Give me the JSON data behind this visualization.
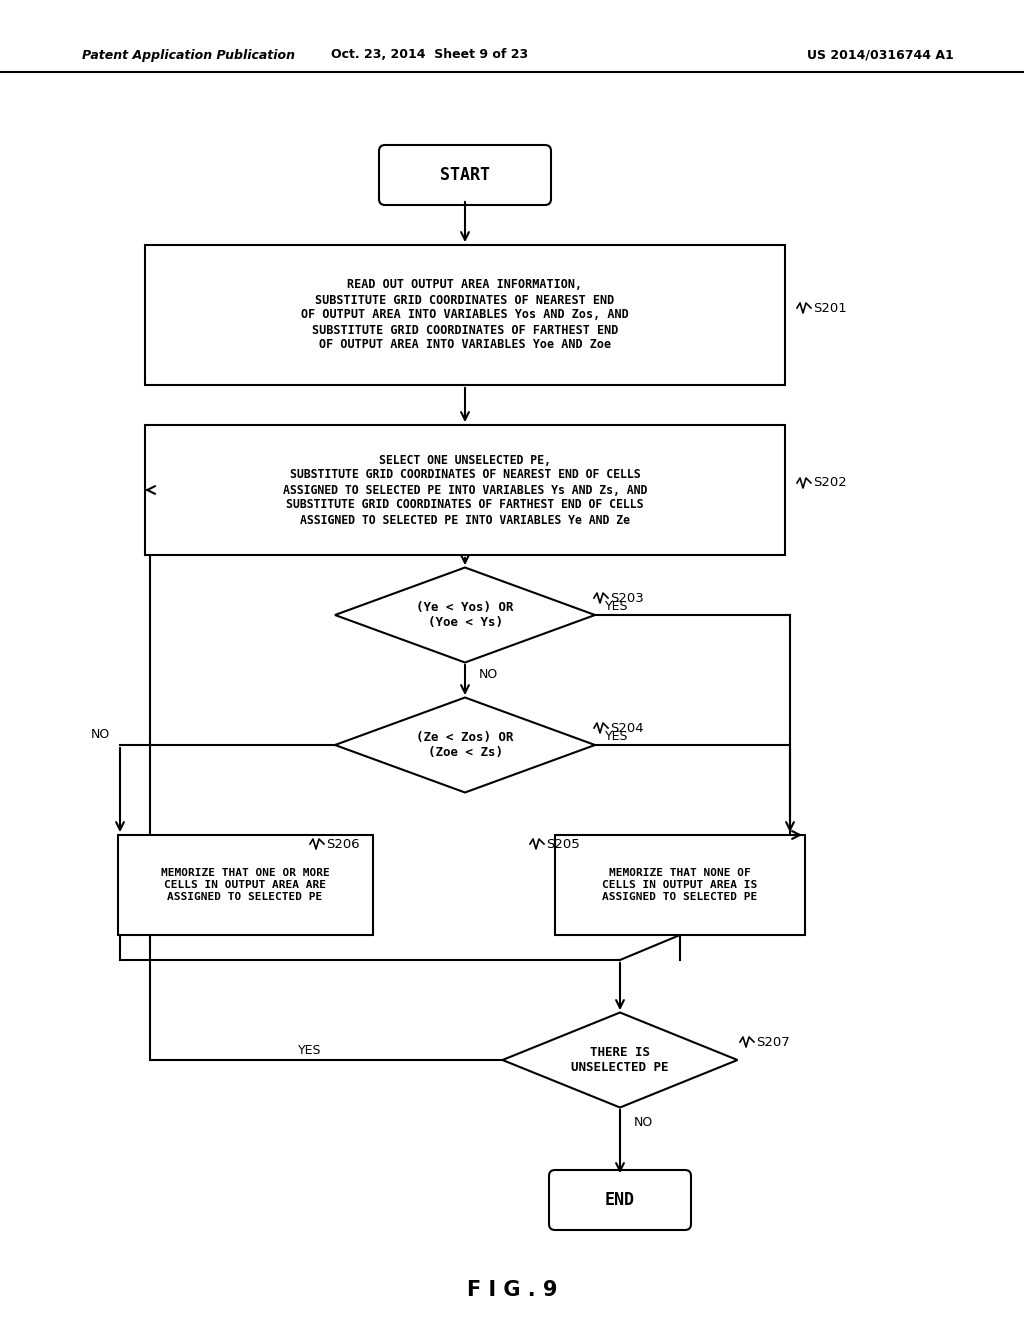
{
  "background": "#ffffff",
  "header_left": "Patent Application Publication",
  "header_mid": "Oct. 23, 2014  Sheet 9 of 23",
  "header_right": "US 2014/0316744 A1",
  "fig_label": "F I G . 9",
  "start_text": "START",
  "end_text": "END",
  "s201_text": "READ OUT OUTPUT AREA INFORMATION,\nSUBSTITUTE GRID COORDINATES OF NEAREST END\nOF OUTPUT AREA INTO VARIABLES Yos AND Zos, AND\nSUBSTITUTE GRID COORDINATES OF FARTHEST END\nOF OUTPUT AREA INTO VARIABLES Yoe AND Zoe",
  "s202_text": "SELECT ONE UNSELECTED PE,\nSUBSTITUTE GRID COORDINATES OF NEAREST END OF CELLS\nASSIGNED TO SELECTED PE INTO VARIABLES Ys AND Zs, AND\nSUBSTITUTE GRID COORDINATES OF FARTHEST END OF CELLS\nASSIGNED TO SELECTED PE INTO VARIABLES Ye AND Ze",
  "s203_text": "(Ye < Yos) OR\n(Yoe < Ys)",
  "s204_text": "(Ze < Zos) OR\n(Zoe < Zs)",
  "s205_text": "MEMORIZE THAT NONE OF\nCELLS IN OUTPUT AREA IS\nASSIGNED TO SELECTED PE",
  "s206_text": "MEMORIZE THAT ONE OR MORE\nCELLS IN OUTPUT AREA ARE\nASSIGNED TO SELECTED PE",
  "s207_text": "THERE IS\nUNSELECTED PE",
  "lw": 1.5,
  "mono_font": "DejaVu Sans Mono"
}
